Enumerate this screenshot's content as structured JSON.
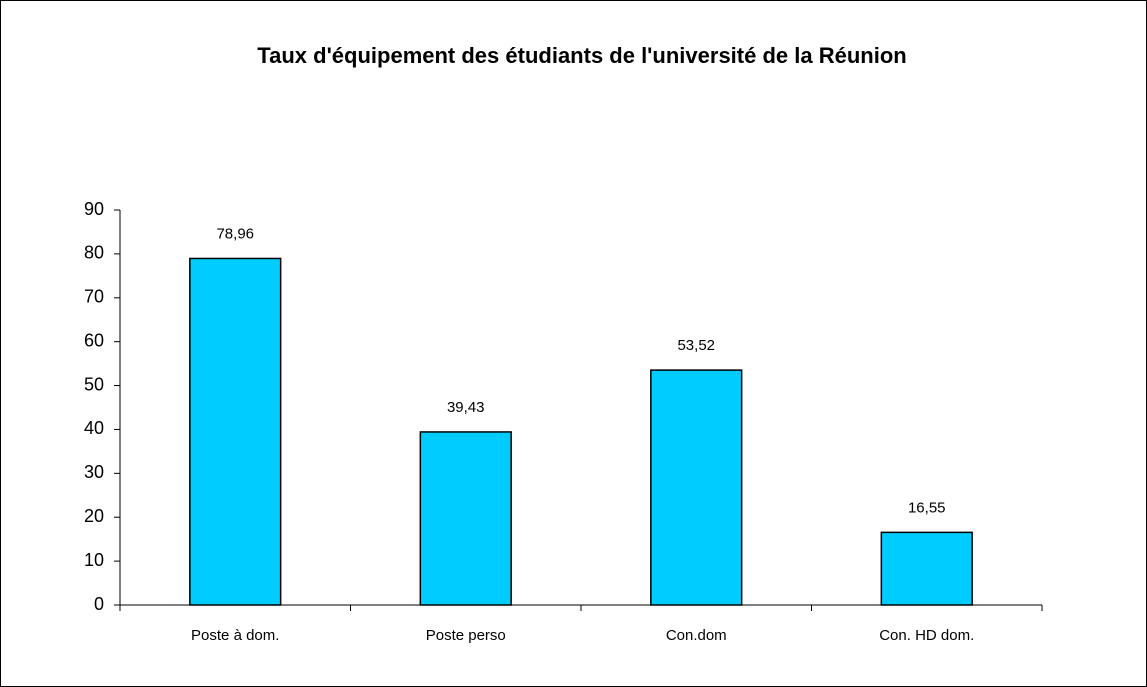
{
  "chart_data": {
    "type": "bar",
    "title": "Taux d'équipement des étudiants de l'université de la Réunion",
    "categories": [
      "Poste à dom.",
      "Poste perso",
      "Con.dom",
      "Con. HD dom."
    ],
    "values": [
      78.96,
      39.43,
      53.52,
      16.55
    ],
    "value_labels": [
      "78,96",
      "39,43",
      "53,52",
      "16,55"
    ],
    "color": "#00ccff",
    "ylim": [
      0,
      90
    ],
    "yticks": [
      0,
      10,
      20,
      30,
      40,
      50,
      60,
      70,
      80,
      90
    ],
    "grid": false
  }
}
